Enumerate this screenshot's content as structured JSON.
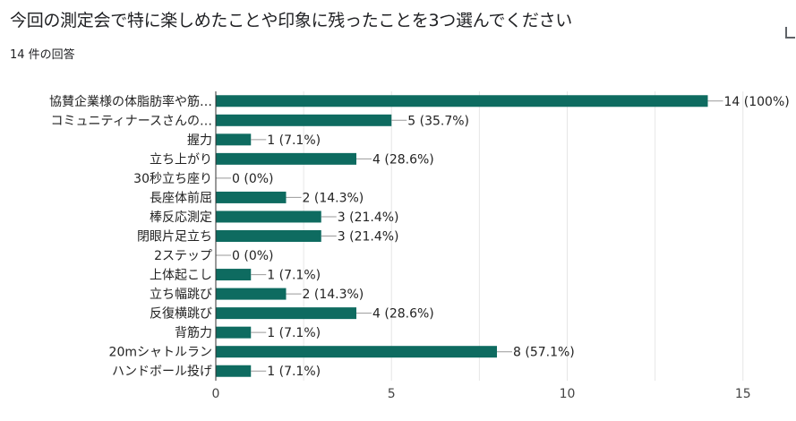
{
  "header": {
    "title": "今回の測定会で特に楽しめたことや印象に残ったことを3つ選んでください",
    "response_count": "14 件の回答"
  },
  "colors": {
    "bar": "#0e6b60",
    "grid": "#e6e6e6",
    "connector": "#999999"
  },
  "chart_data": {
    "type": "bar",
    "orientation": "horizontal",
    "categories": [
      "協賛企業様の体脂肪率や筋…",
      "コミュニティナースさんの…",
      "握力",
      "立ち上がり",
      "30秒立ち座り",
      "長座体前屈",
      "棒反応測定",
      "閉眼片足立ち",
      "2ステップ",
      "上体起こし",
      "立ち幅跳び",
      "反復横跳び",
      "背筋力",
      "20mシャトルラン",
      "ハンドボール投げ"
    ],
    "values": [
      14,
      5,
      1,
      4,
      0,
      2,
      3,
      3,
      0,
      1,
      2,
      4,
      1,
      8,
      1
    ],
    "value_labels": [
      "14 (100%)",
      "5 (35.7%)",
      "1 (7.1%)",
      "4 (28.6%)",
      "0 (0%)",
      "2 (14.3%)",
      "3 (21.4%)",
      "3 (21.4%)",
      "0 (0%)",
      "1 (7.1%)",
      "2 (14.3%)",
      "4 (28.6%)",
      "1 (7.1%)",
      "8 (57.1%)",
      "1 (7.1%)"
    ],
    "xlim": [
      0,
      16
    ],
    "xticks": [
      0,
      5,
      10,
      15
    ],
    "grid": true,
    "legend": "none"
  }
}
